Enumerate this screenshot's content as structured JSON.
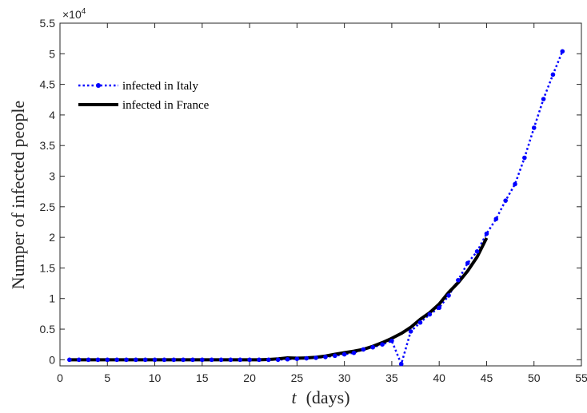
{
  "chart_data": {
    "type": "line",
    "xlabel_italic": "t",
    "xlabel_rest": "(days)",
    "ylabel": "Numper of infected people",
    "xlim": [
      0,
      55
    ],
    "ylim": [
      -1000,
      55000
    ],
    "x_ticks": [
      0,
      5,
      10,
      15,
      20,
      25,
      30,
      35,
      40,
      45,
      50,
      55
    ],
    "x_tick_labels": [
      "0",
      "5",
      "10",
      "15",
      "20",
      "25",
      "30",
      "35",
      "40",
      "45",
      "50",
      "55"
    ],
    "y_ticks": [
      0,
      5000,
      10000,
      15000,
      20000,
      25000,
      30000,
      35000,
      40000,
      45000,
      50000,
      55000
    ],
    "y_tick_labels": [
      "0",
      "0.5",
      "1",
      "1.5",
      "2",
      "2.5",
      "3",
      "3.5",
      "4",
      "4.5",
      "5",
      "5.5"
    ],
    "y_exponent_base": "×10",
    "y_exponent_power": "4",
    "grid": false,
    "legend_position": "top-left",
    "series": [
      {
        "name": "infected in Italy",
        "color": "#0000ff",
        "style": "dotted-with-markers",
        "x": [
          1,
          2,
          3,
          4,
          5,
          6,
          7,
          8,
          9,
          10,
          11,
          12,
          13,
          14,
          15,
          16,
          17,
          18,
          19,
          20,
          21,
          22,
          23,
          24,
          25,
          26,
          27,
          28,
          29,
          30,
          31,
          32,
          33,
          34,
          35,
          36,
          37,
          38,
          39,
          40,
          41,
          42,
          43,
          44,
          45,
          46,
          47,
          48,
          49,
          50,
          51,
          52,
          53
        ],
        "y": [
          0,
          0,
          0,
          0,
          0,
          0,
          0,
          0,
          0,
          0,
          0,
          0,
          0,
          0,
          0,
          0,
          0,
          0,
          0,
          0,
          0,
          0,
          3,
          76,
          150,
          230,
          320,
          450,
          650,
          890,
          1130,
          1690,
          2040,
          2500,
          3090,
          -700,
          4630,
          6080,
          7420,
          8500,
          10500,
          13000,
          15800,
          17700,
          20600,
          23000,
          26000,
          28700,
          33000,
          37900,
          42600,
          46600,
          50400
        ]
      },
      {
        "name": "infected in France",
        "color": "#000000",
        "style": "solid-thick",
        "x": [
          1,
          2,
          3,
          4,
          5,
          6,
          7,
          8,
          9,
          10,
          11,
          12,
          13,
          14,
          15,
          16,
          17,
          18,
          19,
          20,
          21,
          22,
          23,
          24,
          25,
          26,
          27,
          28,
          29,
          30,
          31,
          32,
          33,
          34,
          35,
          36,
          37,
          38,
          39,
          40,
          41,
          42,
          43,
          44,
          45
        ],
        "y": [
          0,
          0,
          0,
          0,
          0,
          0,
          0,
          0,
          0,
          0,
          0,
          0,
          0,
          0,
          0,
          0,
          0,
          0,
          0,
          0,
          0,
          50,
          150,
          300,
          250,
          300,
          400,
          600,
          900,
          1150,
          1400,
          1700,
          2200,
          2800,
          3500,
          4300,
          5300,
          6600,
          7700,
          9100,
          11000,
          12600,
          14500,
          16800,
          19900
        ]
      }
    ]
  }
}
